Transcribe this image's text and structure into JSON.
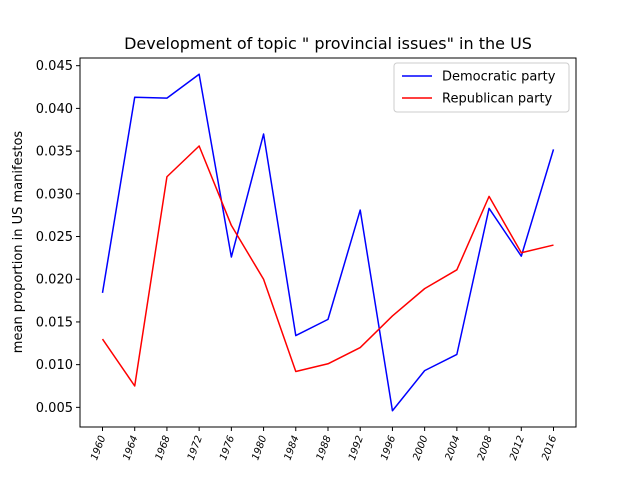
{
  "chart_data": {
    "type": "line",
    "title": "Development of topic \" provincial issues\" in the US",
    "xlabel": "",
    "ylabel": "mean proportion in US manifestos",
    "x": [
      "1960",
      "1964",
      "1968",
      "1972",
      "1976",
      "1980",
      "1984",
      "1988",
      "1992",
      "1996",
      "2000",
      "2004",
      "2008",
      "2012",
      "2016"
    ],
    "series": [
      {
        "name": "Democratic party",
        "color": "#0000ff",
        "values": [
          0.0184,
          0.0413,
          0.0412,
          0.044,
          0.0226,
          0.037,
          0.0134,
          0.0153,
          0.0281,
          0.0046,
          0.0093,
          0.0112,
          0.0283,
          0.0227,
          0.0352
        ]
      },
      {
        "name": "Republican party",
        "color": "#ff0000",
        "values": [
          0.013,
          0.0075,
          0.032,
          0.0356,
          0.0263,
          0.02,
          0.0092,
          0.0101,
          0.012,
          0.0157,
          0.0189,
          0.0211,
          0.0297,
          0.0231,
          0.024
        ]
      }
    ],
    "yticks": [
      "0.005",
      "0.010",
      "0.015",
      "0.020",
      "0.025",
      "0.030",
      "0.035",
      "0.040",
      "0.045"
    ],
    "ylim": [
      0.0027,
      0.0459
    ],
    "grid": false,
    "legend": "top-right"
  }
}
